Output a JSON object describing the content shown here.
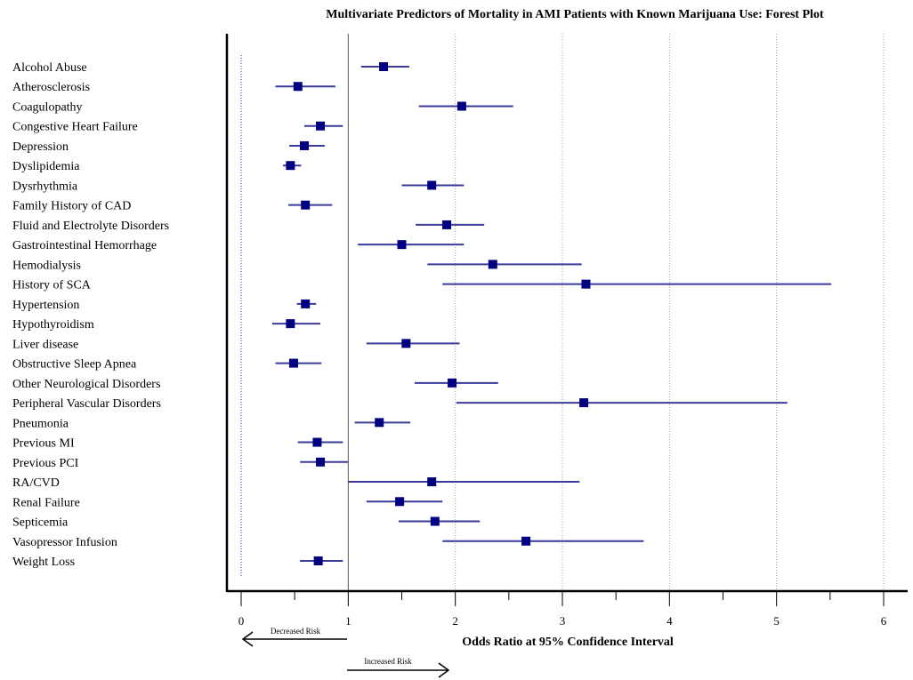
{
  "chart_data": {
    "type": "forest",
    "title": "Multivariate Predictors of Mortality in AMI Patients with Known Marijuana Use: Forest Plot",
    "xlabel": "Odds Ratio at 95% Confidence Interval",
    "xlim": [
      0,
      6
    ],
    "xticks": [
      "0",
      "1",
      "2",
      "3",
      "4",
      "5",
      "6"
    ],
    "reference_line": 1,
    "grid": "vertical-dotted",
    "colors": {
      "marker": "#000080",
      "ci": "#3a3a9a",
      "axis": "#000000",
      "grid": "#9a9a9a",
      "zero_line": "#4a4ab0"
    },
    "annotations": {
      "decreased": "Decreased Risk",
      "increased": "Increased Risk"
    },
    "rows": [
      {
        "label": "Alcohol Abuse",
        "or": 1.33,
        "lo": 1.12,
        "hi": 1.57
      },
      {
        "label": "Atherosclerosis",
        "or": 0.53,
        "lo": 0.32,
        "hi": 0.88
      },
      {
        "label": "Coagulopathy",
        "or": 2.06,
        "lo": 1.66,
        "hi": 2.54
      },
      {
        "label": "Congestive Heart Failure",
        "or": 0.74,
        "lo": 0.59,
        "hi": 0.95
      },
      {
        "label": "Depression",
        "or": 0.59,
        "lo": 0.45,
        "hi": 0.78
      },
      {
        "label": "Dyslipidemia",
        "or": 0.46,
        "lo": 0.39,
        "hi": 0.56
      },
      {
        "label": "Dysrhythmia",
        "or": 1.78,
        "lo": 1.5,
        "hi": 2.08
      },
      {
        "label": "Family History of CAD",
        "or": 0.6,
        "lo": 0.44,
        "hi": 0.85
      },
      {
        "label": "Fluid and Electrolyte Disorders",
        "or": 1.92,
        "lo": 1.63,
        "hi": 2.27
      },
      {
        "label": "Gastrointestinal Hemorrhage",
        "or": 1.5,
        "lo": 1.09,
        "hi": 2.08
      },
      {
        "label": "Hemodialysis",
        "or": 2.35,
        "lo": 1.74,
        "hi": 3.18
      },
      {
        "label": "History of SCA",
        "or": 3.22,
        "lo": 1.88,
        "hi": 5.51
      },
      {
        "label": "Hypertension",
        "or": 0.6,
        "lo": 0.52,
        "hi": 0.7
      },
      {
        "label": "Hypothyroidism",
        "or": 0.46,
        "lo": 0.29,
        "hi": 0.74
      },
      {
        "label": "Liver disease",
        "or": 1.54,
        "lo": 1.17,
        "hi": 2.04
      },
      {
        "label": "Obstructive Sleep Apnea",
        "or": 0.49,
        "lo": 0.32,
        "hi": 0.75
      },
      {
        "label": "Other Neurological Disorders",
        "or": 1.97,
        "lo": 1.62,
        "hi": 2.4
      },
      {
        "label": "Peripheral Vascular Disorders",
        "or": 3.2,
        "lo": 2.01,
        "hi": 5.1
      },
      {
        "label": "Pneumonia",
        "or": 1.29,
        "lo": 1.06,
        "hi": 1.58
      },
      {
        "label": "Previous MI",
        "or": 0.71,
        "lo": 0.53,
        "hi": 0.95
      },
      {
        "label": "Previous PCI",
        "or": 0.74,
        "lo": 0.55,
        "hi": 1.0
      },
      {
        "label": "RA/CVD",
        "or": 1.78,
        "lo": 1.0,
        "hi": 3.16
      },
      {
        "label": "Renal Failure",
        "or": 1.48,
        "lo": 1.17,
        "hi": 1.88
      },
      {
        "label": "Septicemia",
        "or": 1.81,
        "lo": 1.47,
        "hi": 2.23
      },
      {
        "label": "Vasopressor Infusion",
        "or": 2.66,
        "lo": 1.88,
        "hi": 3.76
      },
      {
        "label": "Weight Loss",
        "or": 0.72,
        "lo": 0.55,
        "hi": 0.95
      }
    ]
  }
}
